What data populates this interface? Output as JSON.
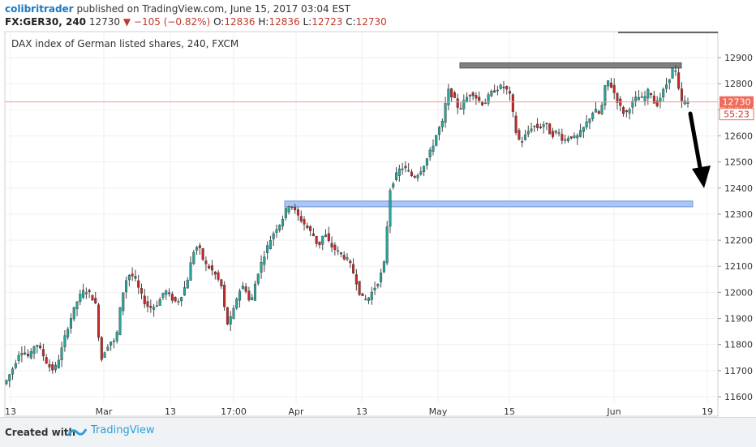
{
  "header": {
    "author": "colibritrader",
    "published_text": "published on TradingView.com, June 15, 2017 03:04 EST",
    "symbol": "FX:GER30, 240",
    "last": "12730",
    "change": "▼ −105 (−0.82%)",
    "o_label": "O:",
    "o_value": "12836",
    "h_label": "H:",
    "h_value": "12836",
    "l_label": "L:",
    "l_value": "12723",
    "c_label": "C:",
    "c_value": "12730"
  },
  "chart_data": {
    "type": "candlestick",
    "title": "DAX index of German listed shares, 240, FXCM",
    "x_tick_labels": [
      "13",
      "Mar",
      "13",
      "17:00",
      "Apr",
      "13",
      "May",
      "15",
      "Jun",
      "19"
    ],
    "y_ticks": [
      11600,
      11700,
      11800,
      11900,
      12000,
      12100,
      12200,
      12300,
      12400,
      12500,
      12600,
      12700,
      12800,
      12900
    ],
    "ylim": [
      11560,
      12960
    ],
    "last_price_label": "12730",
    "countdown_label": "55:23",
    "series": [
      {
        "name": "",
        "path": [
          [
            0,
            11650
          ],
          [
            3,
            11720
          ],
          [
            5,
            11780
          ],
          [
            8,
            11750
          ],
          [
            10,
            11810
          ],
          [
            12,
            11770
          ],
          [
            14,
            11720
          ],
          [
            16,
            11700
          ],
          [
            18,
            11760
          ],
          [
            20,
            11850
          ],
          [
            22,
            11920
          ],
          [
            24,
            11980
          ],
          [
            26,
            12010
          ],
          [
            28,
            11990
          ],
          [
            30,
            11940
          ],
          [
            31,
            11730
          ],
          [
            33,
            11790
          ],
          [
            35,
            11820
          ],
          [
            36,
            11800
          ],
          [
            38,
            11980
          ],
          [
            40,
            12070
          ],
          [
            42,
            12060
          ],
          [
            44,
            12000
          ],
          [
            46,
            11950
          ],
          [
            48,
            11940
          ],
          [
            50,
            11960
          ],
          [
            52,
            12010
          ],
          [
            54,
            11980
          ],
          [
            56,
            11960
          ],
          [
            58,
            12000
          ],
          [
            60,
            12070
          ],
          [
            61,
            12150
          ],
          [
            63,
            12180
          ],
          [
            65,
            12110
          ],
          [
            67,
            12090
          ],
          [
            69,
            12060
          ],
          [
            71,
            12010
          ],
          [
            72,
            11870
          ],
          [
            74,
            11910
          ],
          [
            76,
            12000
          ],
          [
            78,
            12030
          ],
          [
            80,
            11950
          ],
          [
            82,
            12060
          ],
          [
            84,
            12130
          ],
          [
            86,
            12190
          ],
          [
            88,
            12240
          ],
          [
            90,
            12270
          ],
          [
            92,
            12330
          ],
          [
            93,
            12340
          ],
          [
            95,
            12300
          ],
          [
            97,
            12270
          ],
          [
            99,
            12240
          ],
          [
            101,
            12210
          ],
          [
            102,
            12170
          ],
          [
            104,
            12230
          ],
          [
            106,
            12180
          ],
          [
            108,
            12160
          ],
          [
            110,
            12140
          ],
          [
            112,
            12120
          ],
          [
            114,
            12060
          ],
          [
            116,
            11980
          ],
          [
            118,
            11970
          ],
          [
            120,
            12010
          ],
          [
            122,
            12050
          ],
          [
            124,
            12130
          ],
          [
            125,
            12380
          ],
          [
            127,
            12440
          ],
          [
            129,
            12480
          ],
          [
            131,
            12470
          ],
          [
            133,
            12440
          ],
          [
            135,
            12460
          ],
          [
            137,
            12500
          ],
          [
            139,
            12550
          ],
          [
            141,
            12620
          ],
          [
            143,
            12660
          ],
          [
            144,
            12780
          ],
          [
            146,
            12750
          ],
          [
            148,
            12700
          ],
          [
            150,
            12740
          ],
          [
            152,
            12770
          ],
          [
            154,
            12740
          ],
          [
            156,
            12720
          ],
          [
            158,
            12760
          ],
          [
            160,
            12780
          ],
          [
            162,
            12790
          ],
          [
            164,
            12770
          ],
          [
            165,
            12740
          ],
          [
            166,
            12630
          ],
          [
            168,
            12570
          ],
          [
            170,
            12610
          ],
          [
            172,
            12640
          ],
          [
            174,
            12630
          ],
          [
            176,
            12650
          ],
          [
            178,
            12600
          ],
          [
            180,
            12620
          ],
          [
            182,
            12580
          ],
          [
            184,
            12600
          ],
          [
            186,
            12590
          ],
          [
            188,
            12620
          ],
          [
            190,
            12660
          ],
          [
            192,
            12700
          ],
          [
            194,
            12680
          ],
          [
            196,
            12820
          ],
          [
            198,
            12780
          ],
          [
            200,
            12720
          ],
          [
            202,
            12680
          ],
          [
            204,
            12720
          ],
          [
            206,
            12750
          ],
          [
            208,
            12740
          ],
          [
            210,
            12780
          ],
          [
            212,
            12710
          ],
          [
            214,
            12760
          ],
          [
            216,
            12810
          ],
          [
            218,
            12870
          ],
          [
            219,
            12820
          ],
          [
            220,
            12730
          ]
        ]
      }
    ],
    "x_range": [
      0,
      222
    ],
    "annotations": {
      "resistance_zone": [
        12860,
        12880
      ],
      "support_zone": [
        12328,
        12350
      ],
      "arrow": "down"
    },
    "colors": {
      "up": "#26a69a",
      "down": "#c62828",
      "wick": "#444444",
      "resistance": "#808080",
      "support": "#a9c6f5",
      "arrow": "#000000",
      "last_price_badge": "#ef6c5a"
    }
  },
  "footer": {
    "created_label": "Created with",
    "brand_label": "TradingView"
  }
}
